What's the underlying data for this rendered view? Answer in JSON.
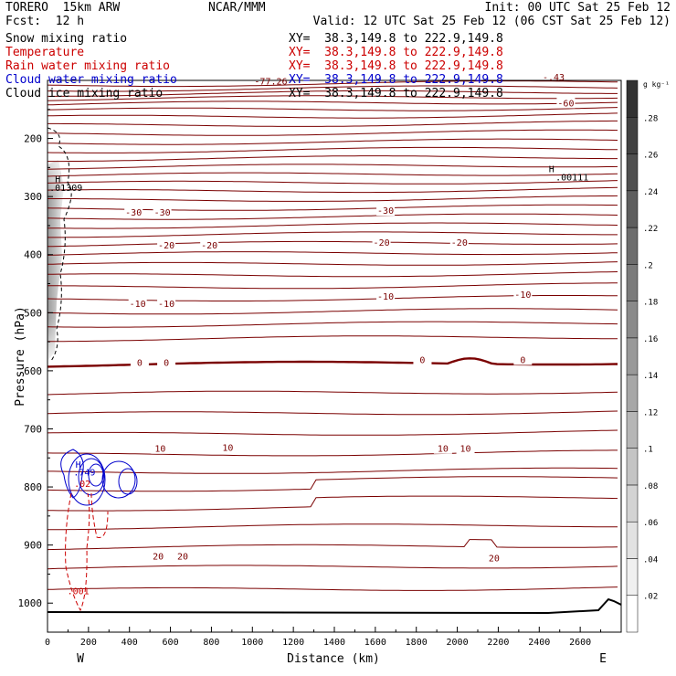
{
  "header": {
    "model_line": "TORERO  15km ARW",
    "forecast_line": "Fcst:  12 h",
    "org": "NCAR/MMM",
    "init": "Init: 00 UTC Sat 25 Feb 12",
    "valid": "Valid: 12 UTC Sat 25 Feb 12 (06 CST Sat 25 Feb 12)"
  },
  "fields": [
    {
      "label": "Snow mixing ratio",
      "xy": "XY=  38.3,149.8 to 222.9,149.8",
      "color": "#000000"
    },
    {
      "label": "Temperature",
      "xy": "XY=  38.3,149.8 to 222.9,149.8",
      "color": "#cc0000"
    },
    {
      "label": "Rain water mixing ratio",
      "xy": "XY=  38.3,149.8 to 222.9,149.8",
      "color": "#cc0000"
    },
    {
      "label": "Cloud water mixing ratio",
      "xy": "XY=  38.3,149.8 to 222.9,149.8",
      "color": "#0000cc"
    },
    {
      "label": "Cloud ice mixing ratio",
      "xy": "XY=  38.3,149.8 to 222.9,149.8",
      "color": "#000000"
    }
  ],
  "chart_data": {
    "type": "contour",
    "xlabel": "Distance (km)",
    "ylabel": "Pressure (hPa)",
    "xlim": [
      0,
      2800
    ],
    "ylim": [
      1050,
      100
    ],
    "x_ticks": [
      0,
      200,
      400,
      600,
      800,
      1000,
      1200,
      1400,
      1600,
      1800,
      2000,
      2200,
      2400,
      2600
    ],
    "y_ticks": [
      200,
      300,
      400,
      500,
      600,
      700,
      800,
      900,
      1000
    ],
    "direction_labels": {
      "left": "W",
      "right": "E"
    },
    "colorbar": {
      "unit": "g kg⁻¹",
      "levels": [
        ".02",
        ".04",
        ".06",
        ".08",
        ".1",
        ".12",
        ".14",
        ".16",
        ".18",
        ".2",
        ".22",
        ".24",
        ".26",
        ".28"
      ]
    },
    "temperature_labels": [
      {
        "text": "-60",
        "x": 2530,
        "p": 140
      },
      {
        "text": "-30",
        "x": 420,
        "p": 328
      },
      {
        "text": "-30",
        "x": 560,
        "p": 328
      },
      {
        "text": "-30",
        "x": 1650,
        "p": 325
      },
      {
        "text": "-20",
        "x": 580,
        "p": 385
      },
      {
        "text": "-20",
        "x": 790,
        "p": 385
      },
      {
        "text": "-20",
        "x": 1630,
        "p": 380
      },
      {
        "text": "-20",
        "x": 2010,
        "p": 380
      },
      {
        "text": "-10",
        "x": 440,
        "p": 485
      },
      {
        "text": "-10",
        "x": 580,
        "p": 485
      },
      {
        "text": "-10",
        "x": 1650,
        "p": 473
      },
      {
        "text": "-10",
        "x": 2320,
        "p": 470
      },
      {
        "text": "0",
        "x": 450,
        "p": 587
      },
      {
        "text": "0",
        "x": 580,
        "p": 587
      },
      {
        "text": "0",
        "x": 1830,
        "p": 582
      },
      {
        "text": "0",
        "x": 2320,
        "p": 582
      },
      {
        "text": "10",
        "x": 550,
        "p": 735
      },
      {
        "text": "10",
        "x": 880,
        "p": 733
      },
      {
        "text": "10",
        "x": 1930,
        "p": 735
      },
      {
        "text": "10",
        "x": 2040,
        "p": 735
      },
      {
        "text": "20",
        "x": 540,
        "p": 920
      },
      {
        "text": "20",
        "x": 660,
        "p": 920
      },
      {
        "text": "20",
        "x": 2180,
        "p": 923
      }
    ],
    "annotations": [
      {
        "text": "H",
        "x": 50,
        "p": 275,
        "color": "#000000"
      },
      {
        "text": ".01309",
        "x": 90,
        "p": 290,
        "color": "#000000"
      },
      {
        "text": "H",
        "x": 2460,
        "p": 258,
        "color": "#000000"
      },
      {
        "text": ".00111",
        "x": 2560,
        "p": 272,
        "color": "#000000"
      },
      {
        "text": "H",
        "x": 150,
        "p": 767,
        "color": "#0000cc"
      },
      {
        "text": ".749",
        "x": 180,
        "p": 780,
        "color": "#0000cc"
      },
      {
        "text": ".02",
        "x": 170,
        "p": 800,
        "color": "#cc0000"
      },
      {
        "text": ".001",
        "x": 150,
        "p": 985,
        "color": "#cc0000"
      },
      {
        "text": "-77.26",
        "x": 1090,
        "p": 107,
        "color": "#7a0000"
      },
      {
        "text": "-.43",
        "x": 2470,
        "p": 100,
        "color": "#7a0000"
      }
    ]
  }
}
